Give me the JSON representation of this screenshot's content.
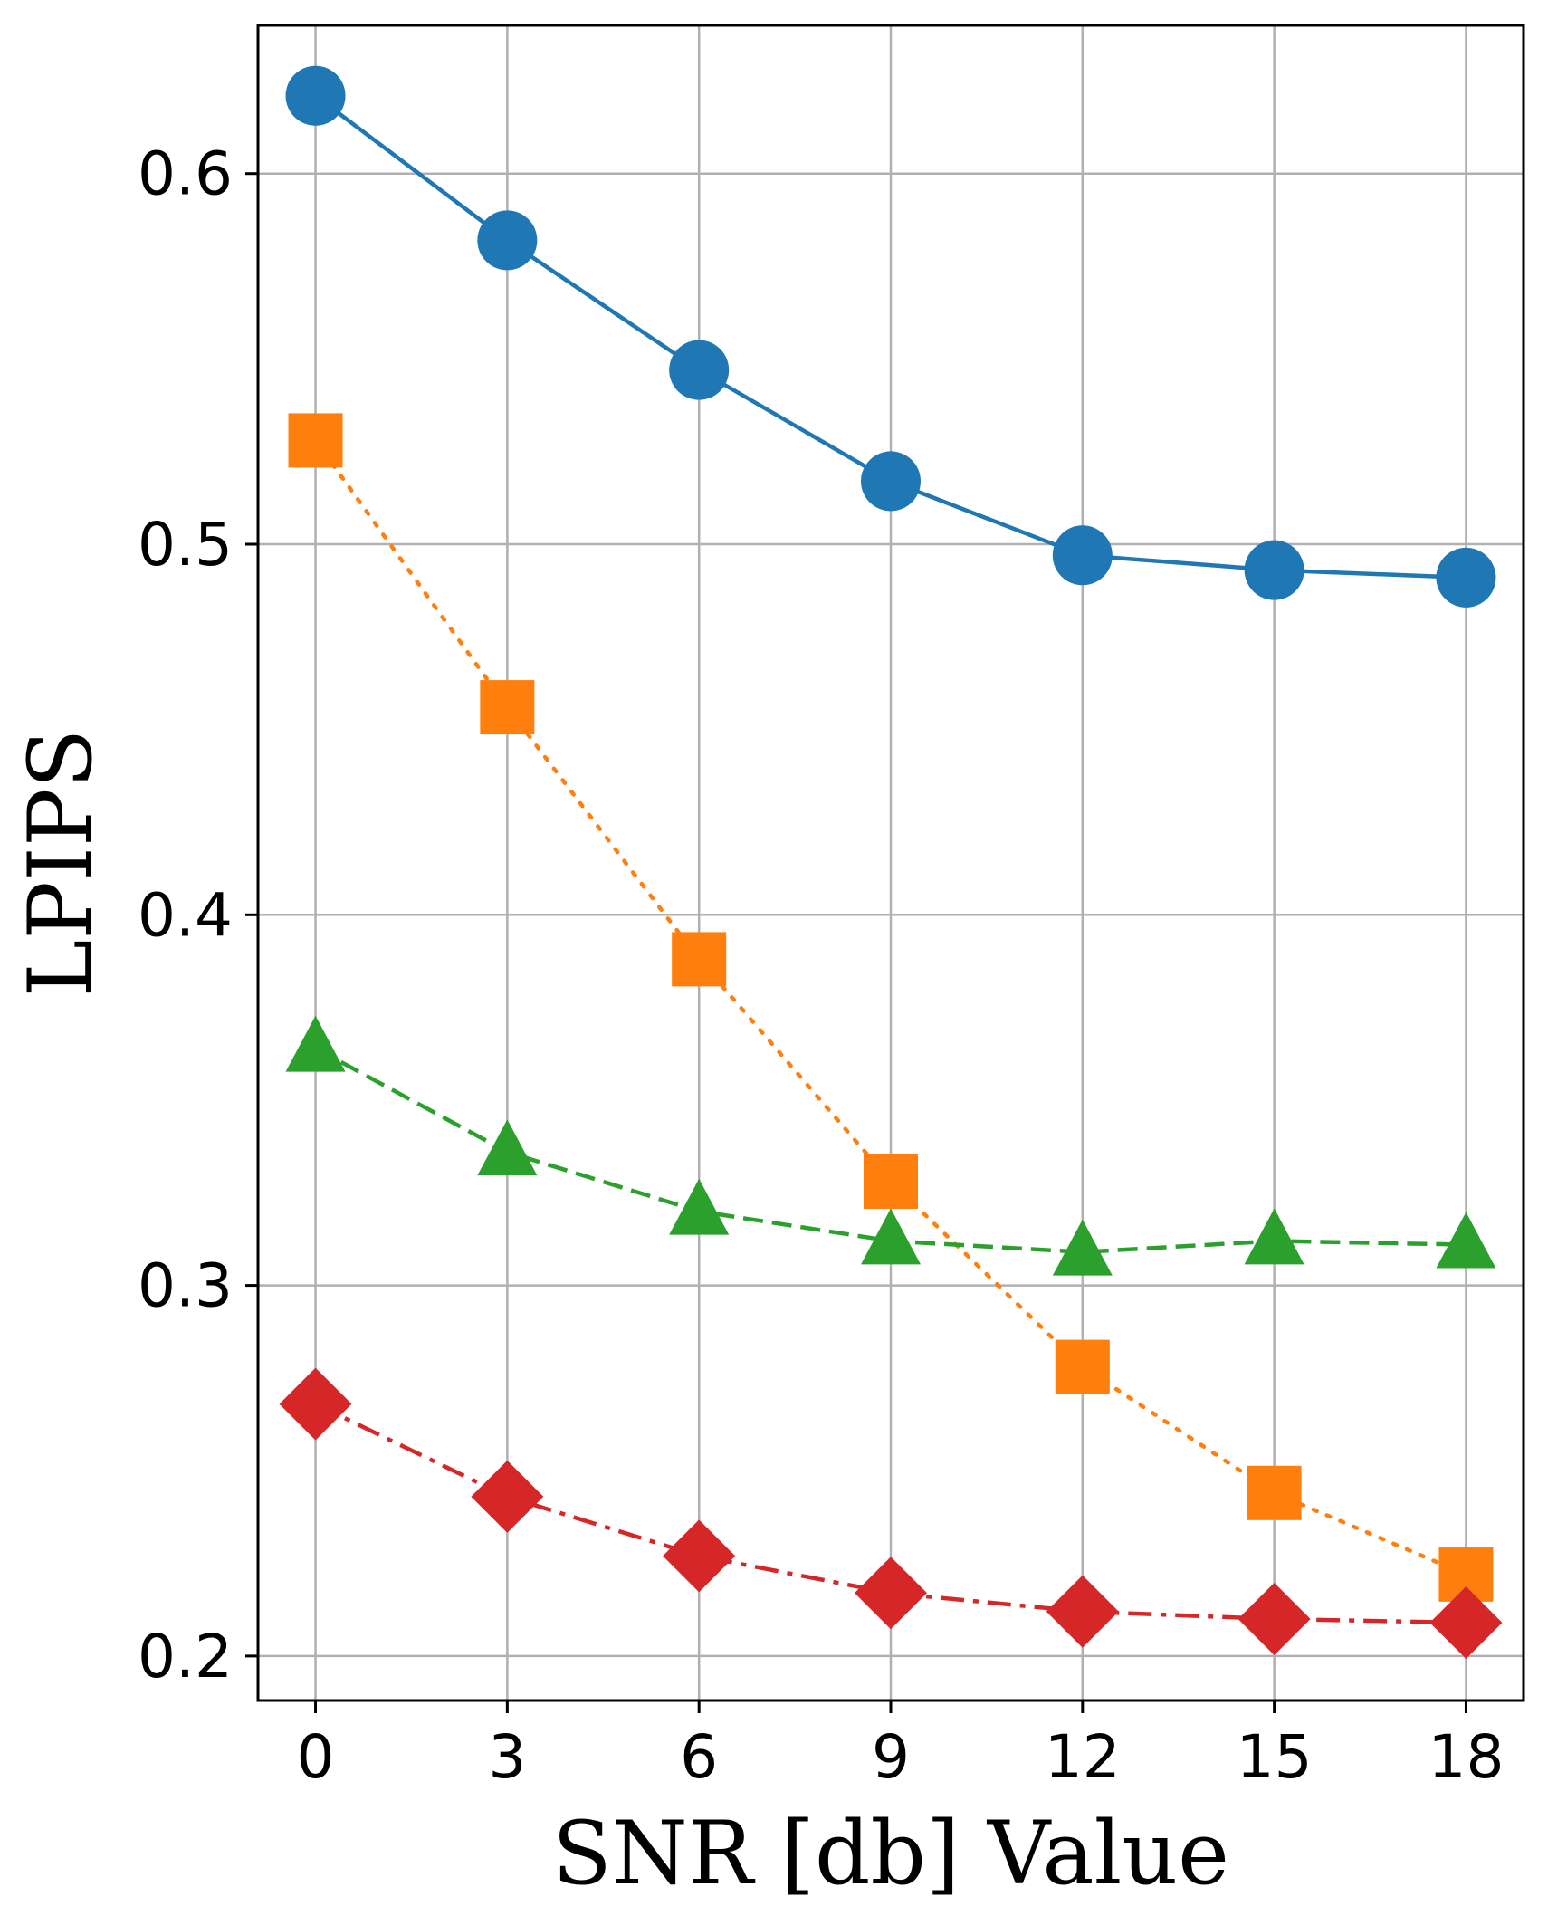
{
  "chart_data": {
    "type": "line",
    "title": "",
    "xlabel": "SNR [db] Value",
    "ylabel": "LPIPS",
    "x": [
      0,
      3,
      6,
      9,
      12,
      15,
      18
    ],
    "xlim": [
      -0.9,
      18.9
    ],
    "ylim": [
      0.188,
      0.64
    ],
    "xticks": [
      0,
      3,
      6,
      9,
      12,
      15,
      18
    ],
    "xtick_labels": [
      "0",
      "3",
      "6",
      "9",
      "12",
      "15",
      "18"
    ],
    "yticks": [
      0.2,
      0.3,
      0.4,
      0.5,
      0.6
    ],
    "ytick_labels": [
      "0.2",
      "0.3",
      "0.4",
      "0.5",
      "0.6"
    ],
    "grid": true,
    "legend": null,
    "series": [
      {
        "values": [
          0.621,
          0.582,
          0.547,
          0.517,
          0.497,
          0.493,
          0.491
        ],
        "color": "#1f77b4",
        "line_style": "solid",
        "marker": "circle"
      },
      {
        "values": [
          0.528,
          0.456,
          0.388,
          0.328,
          0.278,
          0.244,
          0.222
        ],
        "color": "#ff7f0e",
        "line_style": "dotted",
        "marker": "square"
      },
      {
        "values": [
          0.364,
          0.336,
          0.32,
          0.312,
          0.309,
          0.312,
          0.311
        ],
        "color": "#2ca02c",
        "line_style": "dashed",
        "marker": "triangle"
      },
      {
        "values": [
          0.268,
          0.243,
          0.227,
          0.217,
          0.212,
          0.21,
          0.209
        ],
        "color": "#d62728",
        "line_style": "dashdot",
        "marker": "diamond"
      }
    ]
  }
}
